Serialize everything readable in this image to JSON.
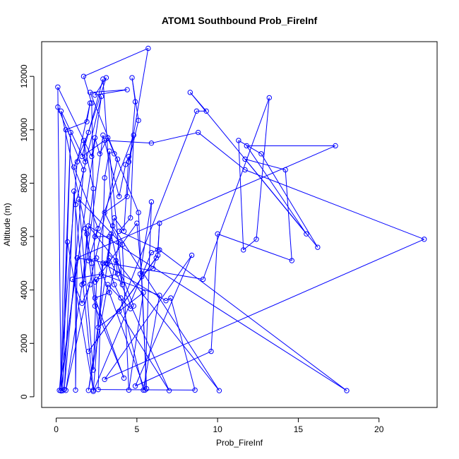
{
  "chart_data": {
    "type": "line",
    "title": "ATOM1 Southbound Prob_FireInf",
    "xlabel": "Prob_FireInf",
    "ylabel": "Altitude (m)",
    "xlim": [
      -0.9,
      23.6
    ],
    "ylim": [
      -400,
      13300
    ],
    "x_ticks": [
      0,
      5,
      10,
      15,
      20
    ],
    "y_ticks": [
      0,
      2000,
      4000,
      6000,
      8000,
      10000,
      12000
    ],
    "grid": false,
    "legend": "none",
    "color": "#0000ff",
    "markers": "open-circle",
    "series": [
      {
        "points": [
          [
            0.1,
            10850
          ],
          [
            1.7,
            8500
          ],
          [
            0.5,
            270
          ],
          [
            1.1,
            7700
          ],
          [
            2.3,
            250
          ],
          [
            0.7,
            5800
          ],
          [
            0.4,
            230
          ],
          [
            0.9,
            9900
          ],
          [
            0.3,
            220
          ],
          [
            0.6,
            10000
          ],
          [
            1.9,
            10300
          ],
          [
            2.1,
            11000
          ],
          [
            1.3,
            8800
          ],
          [
            0.2,
            240
          ],
          [
            2.8,
            11250
          ],
          [
            1.2,
            7200
          ],
          [
            1.2,
            250
          ],
          [
            1.3,
            5200
          ],
          [
            0.3,
            230
          ],
          [
            0.1,
            11600
          ],
          [
            2.2,
            9000
          ],
          [
            2.4,
            9700
          ],
          [
            2.7,
            9100
          ],
          [
            3.2,
            9700
          ],
          [
            3.6,
            9100
          ],
          [
            3.8,
            8900
          ],
          [
            0.6,
            240
          ],
          [
            1.6,
            4200
          ],
          [
            2.3,
            7800
          ],
          [
            1.7,
            9600
          ],
          [
            1.8,
            8800
          ],
          [
            0.3,
            10700
          ],
          [
            1.9,
            6100
          ],
          [
            1.7,
            4250
          ],
          [
            2.9,
            9800
          ],
          [
            3.9,
            7500
          ],
          [
            4.3,
            8700
          ],
          [
            4.5,
            9000
          ],
          [
            4.2,
            6200
          ],
          [
            3.6,
            6700
          ],
          [
            2.0,
            240
          ],
          [
            3.2,
            4200
          ],
          [
            4.6,
            3300
          ],
          [
            4.8,
            3400
          ],
          [
            3.7,
            5100
          ],
          [
            3.8,
            4600
          ],
          [
            2.5,
            4400
          ],
          [
            2.3,
            1000
          ],
          [
            1.4,
            7400
          ],
          [
            4.1,
            5700
          ],
          [
            4.5,
            250
          ],
          [
            5.4,
            3900
          ],
          [
            2.6,
            2600
          ],
          [
            2.2,
            5000
          ],
          [
            1.8,
            6300
          ],
          [
            2.4,
            3400
          ],
          [
            4.2,
            700
          ],
          [
            2.4,
            3700
          ],
          [
            3.3,
            3900
          ],
          [
            3.9,
            5800
          ],
          [
            3.0,
            6900
          ],
          [
            4.4,
            7500
          ],
          [
            4.9,
            11050
          ],
          [
            4.7,
            11950
          ],
          [
            5.1,
            10350
          ],
          [
            4.5,
            8800
          ],
          [
            5.7,
            13050
          ],
          [
            1.7,
            12000
          ],
          [
            2.2,
            11000
          ],
          [
            2.4,
            4300
          ],
          [
            5.0,
            6500
          ],
          [
            5.3,
            4500
          ],
          [
            5.6,
            300
          ],
          [
            5.1,
            6900
          ],
          [
            2.1,
            11400
          ],
          [
            4.4,
            11500
          ],
          [
            2.4,
            11300
          ],
          [
            3.1,
            11950
          ],
          [
            2.0,
            9900
          ],
          [
            1.1,
            8600
          ],
          [
            2.6,
            6300
          ],
          [
            2.0,
            5100
          ],
          [
            2.5,
            5200
          ],
          [
            5.5,
            250
          ],
          [
            5.9,
            7300
          ],
          [
            5.2,
            4600
          ],
          [
            6.0,
            4800
          ],
          [
            6.2,
            5200
          ],
          [
            2.0,
            1700
          ],
          [
            6.3,
            5300
          ],
          [
            6.4,
            6500
          ],
          [
            6.3,
            5500
          ],
          [
            5.9,
            5400
          ],
          [
            2.3,
            200
          ],
          [
            2.9,
            5000
          ],
          [
            6.8,
            3600
          ],
          [
            7.1,
            3700
          ],
          [
            8.6,
            250
          ],
          [
            2.6,
            270
          ],
          [
            3.0,
            8200
          ],
          [
            3.3,
            9200
          ],
          [
            4.1,
            4200
          ],
          [
            3.4,
            6100
          ],
          [
            3.1,
            5000
          ],
          [
            3.3,
            5200
          ],
          [
            7.0,
            230
          ],
          [
            3.9,
            3200
          ],
          [
            8.7,
            10700
          ],
          [
            9.3,
            10700
          ],
          [
            8.3,
            11400
          ],
          [
            16.2,
            5600
          ],
          [
            12.7,
            9100
          ],
          [
            11.3,
            9600
          ],
          [
            11.6,
            5500
          ],
          [
            12.4,
            5900
          ],
          [
            13.2,
            11200
          ],
          [
            9.1,
            4400
          ],
          [
            1.3,
            5200
          ],
          [
            17.3,
            9400
          ],
          [
            11.8,
            9400
          ],
          [
            15.5,
            6100
          ],
          [
            11.7,
            8900
          ],
          [
            14.2,
            8500
          ],
          [
            14.6,
            5100
          ],
          [
            10.0,
            6100
          ],
          [
            9.6,
            1700
          ],
          [
            4.9,
            400
          ],
          [
            8.4,
            5300
          ],
          [
            3.0,
            650
          ],
          [
            22.8,
            5900
          ],
          [
            11.7,
            8500
          ],
          [
            8.8,
            9900
          ],
          [
            5.9,
            9500
          ],
          [
            3.0,
            9600
          ],
          [
            1.6,
            9000
          ],
          [
            2.9,
            11900
          ],
          [
            3.5,
            6400
          ],
          [
            10.1,
            230
          ],
          [
            2.0,
            6400
          ],
          [
            18.0,
            230
          ],
          [
            6.4,
            5500
          ],
          [
            3.9,
            6200
          ],
          [
            4.6,
            6700
          ],
          [
            4.8,
            9800
          ],
          [
            2.4,
            6000
          ],
          [
            3.3,
            6000
          ],
          [
            3.2,
            5000
          ],
          [
            3.6,
            4200
          ],
          [
            4.0,
            3700
          ],
          [
            5.4,
            250
          ],
          [
            6.4,
            3800
          ],
          [
            2.8,
            4600
          ],
          [
            1.0,
            4400
          ],
          [
            1.6,
            3500
          ],
          [
            2.1,
            4200
          ]
        ]
      }
    ]
  }
}
